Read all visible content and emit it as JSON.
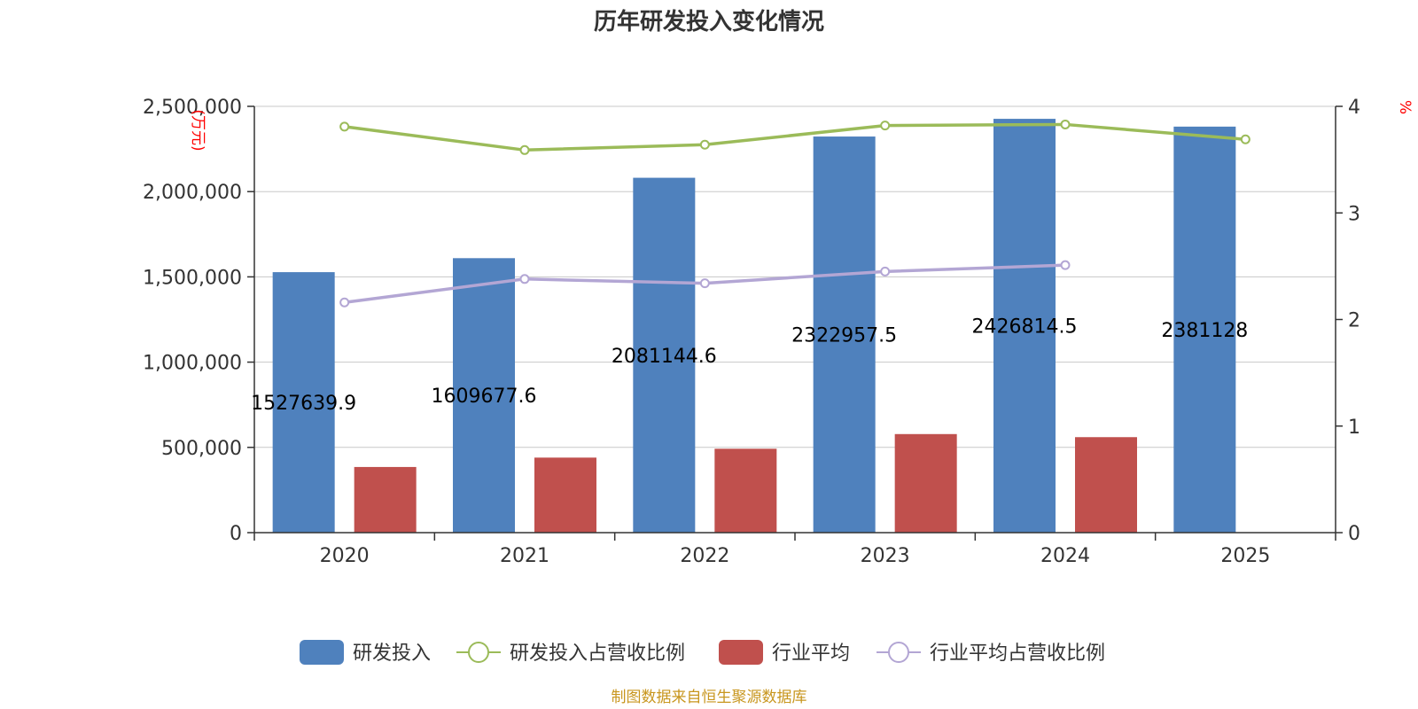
{
  "source_note": "制图数据来自恒生聚源数据库",
  "colors": {
    "rd_bar": "#4f81bd",
    "industry_bar": "#c0504d",
    "rd_ratio_line": "#9bbb59",
    "industry_ratio_line": "#b3a6d4",
    "unit_label": "#ff0000",
    "source_note": "#c8961e"
  },
  "chart_data": {
    "type": "bar",
    "title": "历年研发投入变化情况",
    "categories": [
      "2020",
      "2021",
      "2022",
      "2023",
      "2024",
      "2025"
    ],
    "y_left": {
      "unit": "(万元)",
      "lim": [
        0,
        2500000
      ],
      "ticks": [
        "0",
        "500,000",
        "1,000,000",
        "1,500,000",
        "2,000,000",
        "2,500,000"
      ]
    },
    "y_right": {
      "unit": "%",
      "lim": [
        0,
        4
      ],
      "ticks": [
        "0",
        "1",
        "2",
        "3",
        "4"
      ]
    },
    "grid": true,
    "legend_position": "bottom",
    "series": [
      {
        "name": "研发投入",
        "kind": "bar",
        "axis": "left",
        "values": [
          1527639.9,
          1609677.6,
          2081144.6,
          2322957.5,
          2426814.5,
          2381128
        ],
        "labels": [
          "1527639.9",
          "1609677.6",
          "2081144.6",
          "2322957.5",
          "2426814.5",
          "2381128"
        ]
      },
      {
        "name": "研发投入占营收比例",
        "kind": "line",
        "axis": "right",
        "values": [
          3.81,
          3.59,
          3.64,
          3.82,
          3.83,
          3.69
        ]
      },
      {
        "name": "行业平均",
        "kind": "bar",
        "axis": "left",
        "values": [
          385000,
          440000,
          492000,
          578000,
          560000,
          null
        ]
      },
      {
        "name": "行业平均占营收比例",
        "kind": "line",
        "axis": "right",
        "values": [
          2.16,
          2.38,
          2.34,
          2.45,
          2.51,
          null
        ]
      }
    ]
  }
}
